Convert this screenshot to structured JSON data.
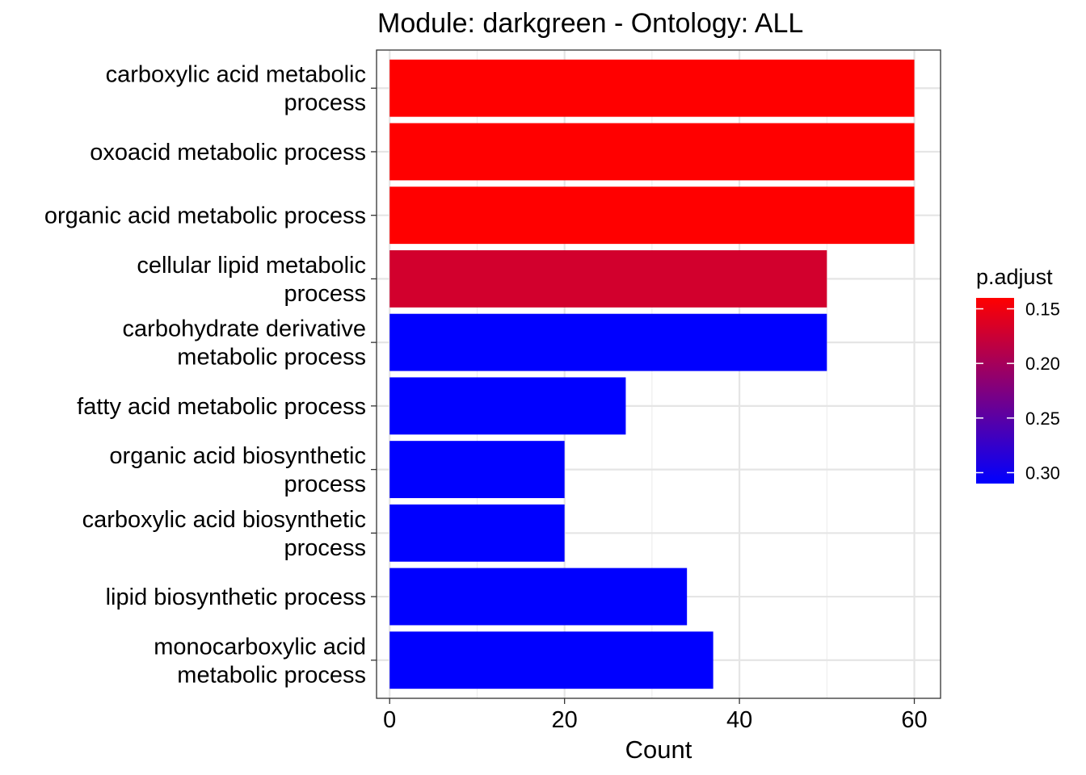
{
  "chart_data": {
    "type": "bar",
    "orientation": "horizontal",
    "title": "Module: darkgreen - Ontology: ALL",
    "xlabel": "Count",
    "ylabel": "",
    "xlim": [
      -1.5,
      63
    ],
    "xticks": [
      0,
      20,
      40,
      60
    ],
    "grid": true,
    "categories": [
      [
        "carboxylic acid metabolic",
        "process"
      ],
      [
        "oxoacid metabolic process"
      ],
      [
        "organic acid metabolic process"
      ],
      [
        "cellular lipid metabolic",
        "process"
      ],
      [
        "carbohydrate derivative",
        "metabolic process"
      ],
      [
        "fatty acid metabolic process"
      ],
      [
        "organic acid biosynthetic",
        "process"
      ],
      [
        "carboxylic acid biosynthetic",
        "process"
      ],
      [
        "lipid biosynthetic process"
      ],
      [
        "monocarboxylic acid",
        "metabolic process"
      ]
    ],
    "values": [
      60,
      60,
      60,
      50,
      50,
      27,
      20,
      20,
      34,
      37
    ],
    "padjust": [
      0.14,
      0.14,
      0.14,
      0.17,
      0.31,
      0.31,
      0.31,
      0.31,
      0.31,
      0.31
    ],
    "legend": {
      "title": "p.adjust",
      "position": "right",
      "range": [
        0.14,
        0.31
      ],
      "ticks": [
        0.15,
        0.2,
        0.25,
        0.3
      ],
      "tick_labels": [
        "0.15",
        "0.20",
        "0.25",
        "0.30"
      ],
      "color_low": "#ff0000",
      "color_high": "#0000ff"
    }
  }
}
